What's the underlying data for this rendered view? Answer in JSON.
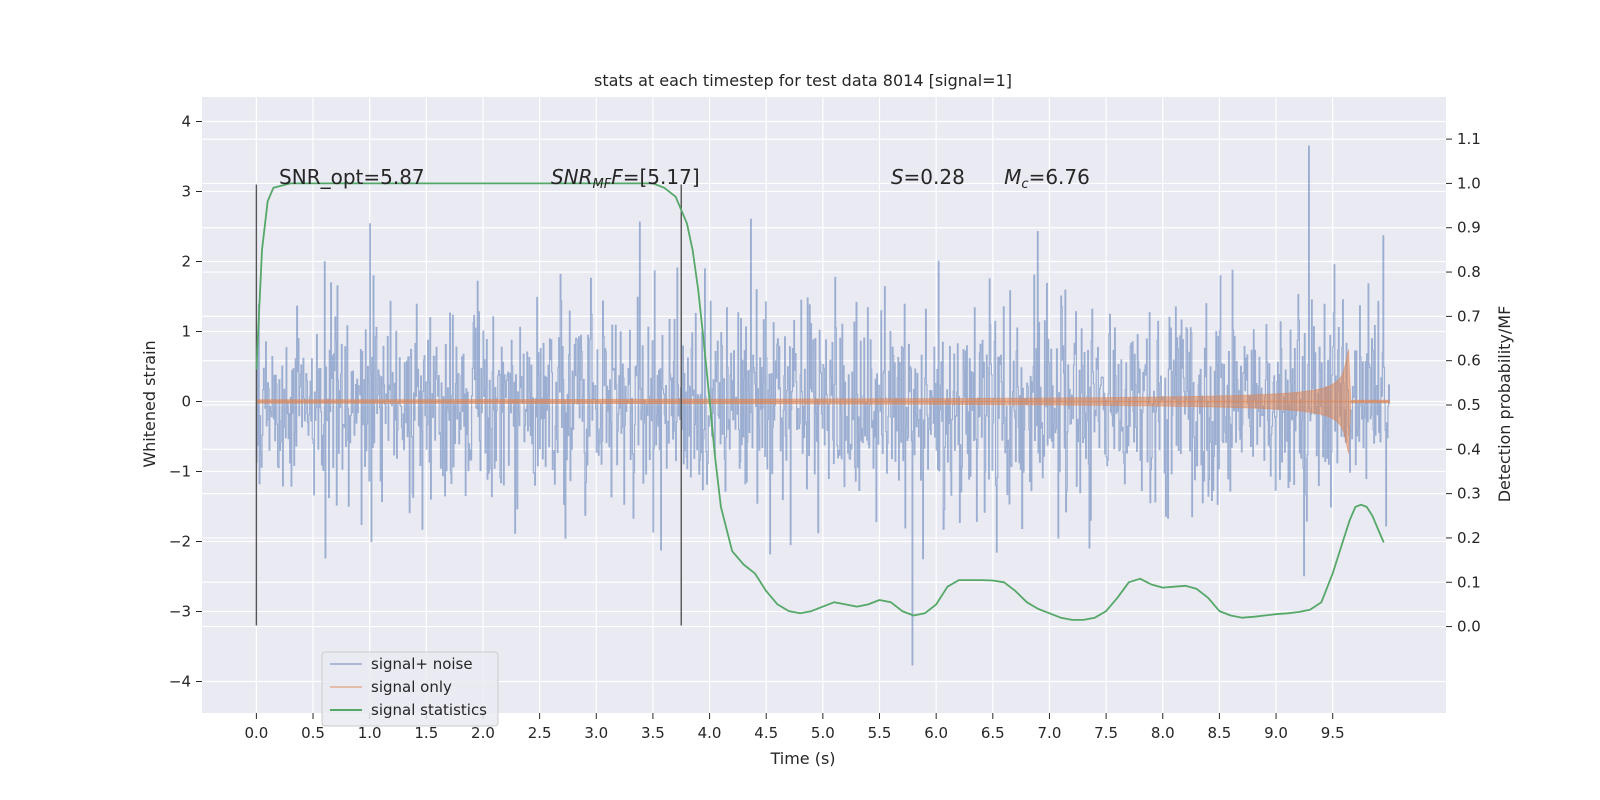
{
  "chart_data": {
    "type": "line",
    "title": "stats at each timestep for test data 8014 [signal=1]",
    "xlabel": "Time (s)",
    "ylabel": "Whitened strain",
    "y2label": "Detection probability/MF",
    "xlim": [
      -0.48,
      10.5
    ],
    "ylim": [
      -4.45,
      4.35
    ],
    "y2lim": [
      -0.195,
      1.195
    ],
    "x_ticks": [
      0.0,
      0.5,
      1.0,
      1.5,
      2.0,
      2.5,
      3.0,
      3.5,
      4.0,
      4.5,
      5.0,
      5.5,
      6.0,
      6.5,
      7.0,
      7.5,
      8.0,
      8.5,
      9.0,
      9.5
    ],
    "x_tick_labels": [
      "0.0",
      "0.5",
      "1.0",
      "1.5",
      "2.0",
      "2.5",
      "3.0",
      "3.5",
      "4.0",
      "4.5",
      "5.0",
      "5.5",
      "6.0",
      "6.5",
      "7.0",
      "7.5",
      "8.0",
      "8.5",
      "9.0",
      "9.5"
    ],
    "y_ticks": [
      -4,
      -3,
      -2,
      -1,
      0,
      1,
      2,
      3,
      4
    ],
    "y_tick_labels": [
      "−4",
      "−3",
      "−2",
      "−1",
      "0",
      "1",
      "2",
      "3",
      "4"
    ],
    "y2_ticks": [
      0.0,
      0.1,
      0.2,
      0.3,
      0.4,
      0.5,
      0.6,
      0.7,
      0.8,
      0.9,
      1.0,
      1.1
    ],
    "y2_tick_labels": [
      "0.0",
      "0.1",
      "0.2",
      "0.3",
      "0.4",
      "0.5",
      "0.6",
      "0.7",
      "0.8",
      "0.9",
      "1.0",
      "1.1"
    ],
    "grid": true,
    "legend_position": "lower-left",
    "series": [
      {
        "name": "signal+ noise",
        "axis": "left",
        "color": "#4c72b0",
        "description": "whitened strain data, roughly between -3 and +3.7 over 0 to 10 s",
        "x_range": [
          0.0,
          10.0
        ],
        "approx_range": [
          -4.05,
          3.95
        ]
      },
      {
        "name": "signal only",
        "axis": "left",
        "color": "#dd8452",
        "description": "chirp signal growing in amplitude until about 9.65 s",
        "x_range": [
          0.0,
          10.0
        ],
        "peak_x": 9.65,
        "peak_amplitude": 0.85
      },
      {
        "name": "signal statistics",
        "axis": "right",
        "color": "#55a868",
        "x": [
          0.0,
          0.05,
          0.1,
          0.15,
          0.3,
          1.0,
          2.0,
          3.0,
          3.5,
          3.6,
          3.7,
          3.8,
          3.85,
          3.9,
          3.95,
          4.0,
          4.05,
          4.1,
          4.2,
          4.3,
          4.4,
          4.5,
          4.6,
          4.7,
          4.8,
          4.9,
          5.0,
          5.1,
          5.2,
          5.3,
          5.4,
          5.5,
          5.6,
          5.7,
          5.8,
          5.9,
          6.0,
          6.1,
          6.2,
          6.3,
          6.4,
          6.5,
          6.6,
          6.7,
          6.8,
          6.9,
          7.0,
          7.1,
          7.2,
          7.3,
          7.4,
          7.5,
          7.6,
          7.7,
          7.8,
          7.9,
          8.0,
          8.1,
          8.2,
          8.3,
          8.4,
          8.5,
          8.6,
          8.7,
          8.8,
          8.9,
          9.0,
          9.1,
          9.2,
          9.3,
          9.4,
          9.5,
          9.6,
          9.65,
          9.7,
          9.75,
          9.8,
          9.85,
          9.9,
          9.95
        ],
        "y": [
          0.58,
          0.85,
          0.96,
          0.99,
          1.0,
          1.0,
          1.0,
          1.0,
          1.0,
          0.99,
          0.97,
          0.91,
          0.85,
          0.76,
          0.64,
          0.51,
          0.38,
          0.27,
          0.17,
          0.14,
          0.12,
          0.08,
          0.05,
          0.035,
          0.03,
          0.035,
          0.045,
          0.055,
          0.05,
          0.045,
          0.05,
          0.06,
          0.055,
          0.035,
          0.025,
          0.03,
          0.05,
          0.09,
          0.105,
          0.105,
          0.105,
          0.104,
          0.1,
          0.08,
          0.055,
          0.04,
          0.03,
          0.02,
          0.015,
          0.015,
          0.02,
          0.035,
          0.065,
          0.1,
          0.108,
          0.095,
          0.088,
          0.09,
          0.092,
          0.085,
          0.065,
          0.035,
          0.025,
          0.02,
          0.022,
          0.025,
          0.028,
          0.03,
          0.033,
          0.038,
          0.055,
          0.12,
          0.2,
          0.24,
          0.27,
          0.275,
          0.27,
          0.25,
          0.22,
          0.19
        ]
      }
    ],
    "vertical_lines": [
      {
        "x": 0.0,
        "ymin": -3.2,
        "ymax": 3.1,
        "color": "#555555"
      },
      {
        "x": 3.75,
        "ymin": -3.2,
        "ymax": 3.1,
        "color": "#555555"
      }
    ],
    "annotations": [
      {
        "text": "SNR_opt=5.87",
        "x": 0.2
      },
      {
        "text": "SNR",
        "sub": "MF",
        "suffix": "F=[5.17]",
        "x": 2.6
      },
      {
        "text": "S",
        "suffix": "=0.28",
        "x": 5.6
      },
      {
        "text": "M",
        "sub": "c",
        "suffix": "=6.76",
        "x": 6.6
      }
    ]
  }
}
